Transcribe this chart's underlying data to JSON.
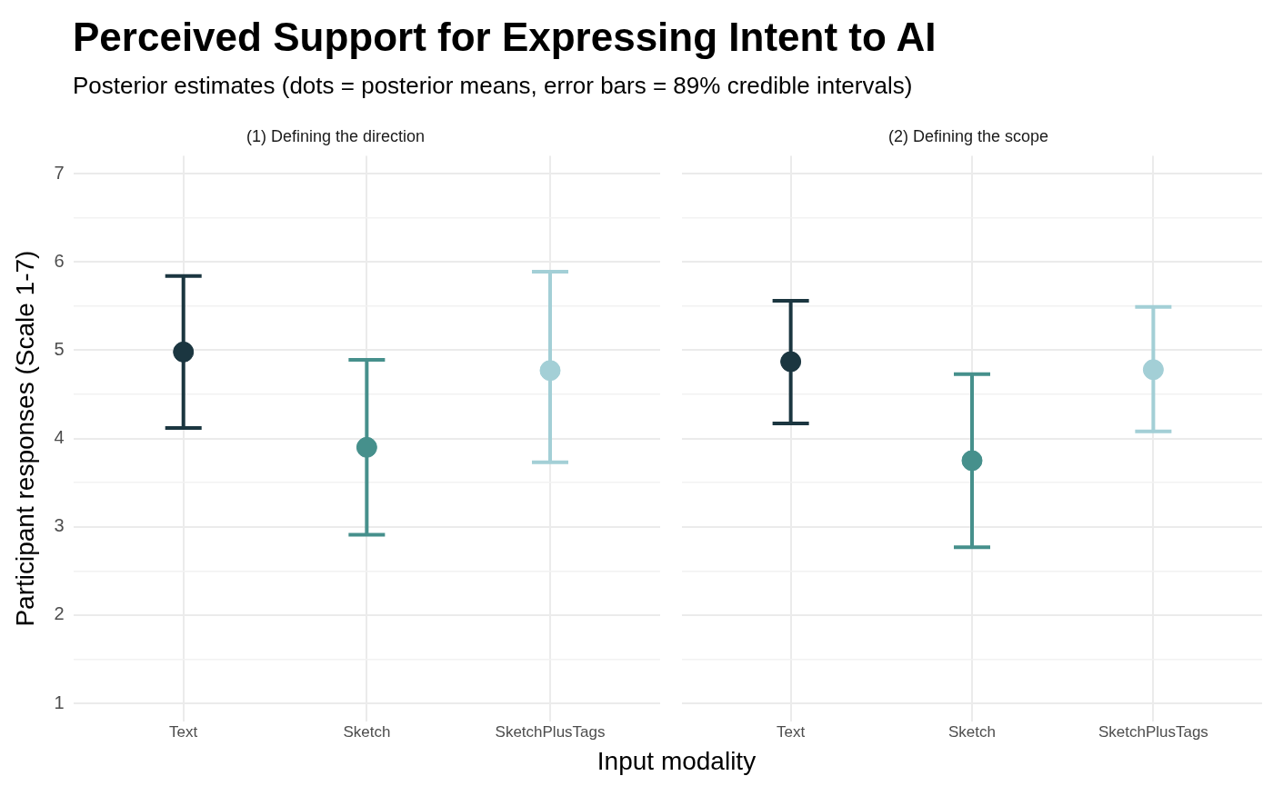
{
  "chart_data": [
    {
      "type": "other",
      "title": "Perceived Support for Expressing Intent to AI",
      "subtitle": "Posterior estimates (dots = posterior means, error bars = 89% credible intervals)"
    },
    {
      "type": "scatter",
      "title": "(1) Defining the direction",
      "xlabel": "Input modality",
      "ylabel": "Participant responses (Scale 1-7)",
      "categories": [
        "Text",
        "Sketch",
        "SketchPlusTags"
      ],
      "series": [
        {
          "values": [
            4.98,
            3.9,
            4.77
          ],
          "colors": [
            "#1b3640",
            "#46908c",
            "#a3cfd6"
          ],
          "errors": [
            [
              4.12,
              5.84
            ],
            [
              2.91,
              4.89
            ],
            [
              3.73,
              5.89
            ]
          ]
        }
      ],
      "ylim": [
        0.8,
        7.2
      ],
      "yticks": [
        1,
        {
          "value": 1.5,
          "label": null
        },
        2,
        {
          "value": 2.5,
          "label": null
        },
        3,
        {
          "value": 3.5,
          "label": null
        },
        4,
        {
          "value": 4.5,
          "label": null
        },
        5,
        {
          "value": 5.5,
          "label": null
        },
        6,
        {
          "value": 6.5,
          "label": null
        },
        7
      ],
      "grid": true,
      "marker": "circle"
    },
    {
      "type": "scatter",
      "title": "(2) Defining the scope",
      "categories": [
        "Text",
        "Sketch",
        "SketchPlusTags"
      ],
      "series": [
        {
          "values": [
            4.87,
            3.75,
            4.78
          ],
          "colors": [
            "#1b3640",
            "#46908c",
            "#a3cfd6"
          ],
          "errors": [
            [
              4.17,
              5.56
            ],
            [
              2.77,
              4.73
            ],
            [
              4.08,
              5.49
            ]
          ]
        }
      ],
      "ylim": [
        0.8,
        7.2
      ],
      "yticks": [
        1,
        {
          "value": 1.5,
          "label": null
        },
        2,
        {
          "value": 2.5,
          "label": null
        },
        3,
        {
          "value": 3.5,
          "label": null
        },
        4,
        {
          "value": 4.5,
          "label": null
        },
        5,
        {
          "value": 5.5,
          "label": null
        },
        6,
        {
          "value": 6.5,
          "label": null
        },
        7
      ],
      "grid": true,
      "marker": "circle",
      "tick_labels": "x"
    }
  ]
}
